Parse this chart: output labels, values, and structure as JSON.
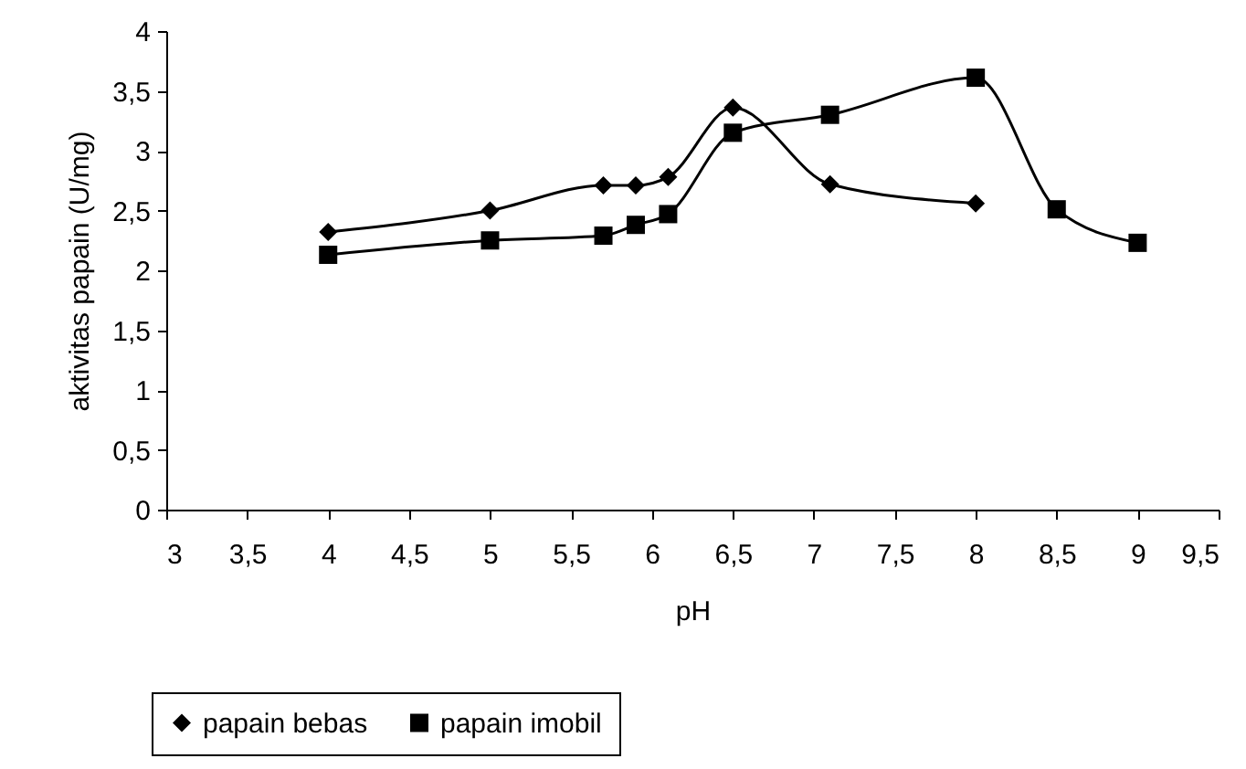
{
  "chart_data": {
    "type": "line",
    "xlabel": "pH",
    "ylabel": "aktivitas papain (U/mg)",
    "series": [
      {
        "name": "papain bebas",
        "color": "#000000",
        "marker": "diamond",
        "x": [
          4,
          5,
          5.7,
          5.9,
          6.1,
          6.5,
          7.1,
          8
        ],
        "values": [
          2.32,
          2.5,
          2.71,
          2.71,
          2.78,
          3.36,
          2.72,
          2.56
        ]
      },
      {
        "name": "papain imobil",
        "color": "#000000",
        "marker": "square",
        "x": [
          4,
          5,
          5.7,
          5.9,
          6.1,
          6.5,
          7.1,
          8,
          8.5,
          9
        ],
        "values": [
          2.13,
          2.25,
          2.29,
          2.38,
          2.47,
          3.15,
          3.3,
          3.61,
          2.51,
          2.23
        ]
      }
    ],
    "xlim": [
      3,
      9.5
    ],
    "xticks": [
      3,
      {
        "value": 3.5,
        "label": "3,5"
      },
      4,
      {
        "value": 4.5,
        "label": "4,5"
      },
      5,
      {
        "value": 5.5,
        "label": "5,5"
      },
      6,
      {
        "value": 6.5,
        "label": "6,5"
      },
      7,
      {
        "value": 7.5,
        "label": "7,5"
      },
      8,
      {
        "value": 8.5,
        "label": "8,5"
      },
      9,
      {
        "value": 9.5,
        "label": "9,5"
      }
    ],
    "ylim": [
      0,
      4
    ],
    "yticks": [
      0,
      {
        "value": 0.5,
        "label": "0,5"
      },
      1,
      {
        "value": 1.5,
        "label": "1,5"
      },
      2,
      {
        "value": 2.5,
        "label": "2,5"
      },
      3,
      {
        "value": 3.5,
        "label": "3,5"
      },
      4
    ],
    "grid": false,
    "legend": "bottom",
    "line_style": "solid"
  }
}
